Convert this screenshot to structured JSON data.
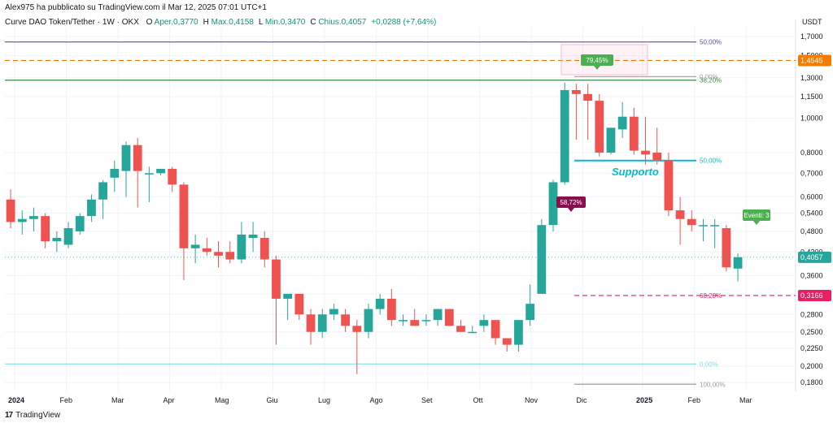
{
  "header": {
    "published": "Alex975 ha pubblicato su TradingView.com il Mar 12, 2025 07:01 UTC+1",
    "symbol": "Curve DAO Token/Tether · 1W · OKX",
    "ohlc": [
      {
        "label": "O",
        "value": "Aper.0,3770"
      },
      {
        "label": "H",
        "value": "Max.0,4158"
      },
      {
        "label": "L",
        "value": "Min.0,3470"
      },
      {
        "label": "C",
        "value": "Chius.0,4057"
      },
      {
        "label": "",
        "value": "+0,0288 (+7,64%)"
      }
    ]
  },
  "footer": {
    "brand": "TradingView",
    "logo": "17"
  },
  "colors": {
    "up": "#26a69a",
    "down": "#ef5350",
    "grid": "#f0f3fa",
    "fib_top": "#5b4dbc",
    "orange": "#f57c00",
    "green_line": "#388e3c",
    "teal": "#00bcd4",
    "magenta": "#e91e63",
    "price": "#26a69a"
  },
  "chart_data": {
    "type": "candlestick",
    "scale": "log",
    "y_unit": "USDT",
    "ylim": [
      0.17,
      1.8
    ],
    "x_ticks": [
      "2024",
      "Feb",
      "Mar",
      "Apr",
      "Mag",
      "Giu",
      "Lug",
      "Ago",
      "Set",
      "Ott",
      "Nov",
      "Dic",
      "2025",
      "Feb",
      "Mar"
    ],
    "y_ticks": [
      "1,7000",
      "1,5000",
      "1,3000",
      "1,1500",
      "1,0000",
      "0,8000",
      "0,7000",
      "0,6000",
      "0,5400",
      "0,4800",
      "0,4200",
      "0,3600",
      "0,3200",
      "0,2800",
      "0,2500",
      "0,2250",
      "0,2000",
      "0,1800"
    ],
    "candles": [
      {
        "o": 0.59,
        "h": 0.63,
        "l": 0.49,
        "c": 0.51
      },
      {
        "o": 0.51,
        "h": 0.55,
        "l": 0.47,
        "c": 0.52
      },
      {
        "o": 0.52,
        "h": 0.56,
        "l": 0.48,
        "c": 0.53
      },
      {
        "o": 0.53,
        "h": 0.54,
        "l": 0.43,
        "c": 0.45
      },
      {
        "o": 0.45,
        "h": 0.48,
        "l": 0.42,
        "c": 0.46
      },
      {
        "o": 0.44,
        "h": 0.51,
        "l": 0.43,
        "c": 0.49
      },
      {
        "o": 0.48,
        "h": 0.54,
        "l": 0.47,
        "c": 0.53
      },
      {
        "o": 0.53,
        "h": 0.61,
        "l": 0.51,
        "c": 0.59
      },
      {
        "o": 0.59,
        "h": 0.67,
        "l": 0.52,
        "c": 0.66
      },
      {
        "o": 0.68,
        "h": 0.76,
        "l": 0.62,
        "c": 0.72
      },
      {
        "o": 0.71,
        "h": 0.86,
        "l": 0.6,
        "c": 0.84
      },
      {
        "o": 0.84,
        "h": 0.88,
        "l": 0.56,
        "c": 0.71
      },
      {
        "o": 0.7,
        "h": 0.73,
        "l": 0.58,
        "c": 0.7
      },
      {
        "o": 0.7,
        "h": 0.72,
        "l": 0.69,
        "c": 0.72
      },
      {
        "o": 0.72,
        "h": 0.73,
        "l": 0.62,
        "c": 0.65
      },
      {
        "o": 0.65,
        "h": 0.66,
        "l": 0.35,
        "c": 0.43
      },
      {
        "o": 0.43,
        "h": 0.47,
        "l": 0.39,
        "c": 0.44
      },
      {
        "o": 0.43,
        "h": 0.46,
        "l": 0.41,
        "c": 0.42
      },
      {
        "o": 0.42,
        "h": 0.45,
        "l": 0.38,
        "c": 0.41
      },
      {
        "o": 0.42,
        "h": 0.45,
        "l": 0.39,
        "c": 0.4
      },
      {
        "o": 0.4,
        "h": 0.51,
        "l": 0.39,
        "c": 0.47
      },
      {
        "o": 0.46,
        "h": 0.51,
        "l": 0.42,
        "c": 0.47
      },
      {
        "o": 0.46,
        "h": 0.48,
        "l": 0.38,
        "c": 0.4
      },
      {
        "o": 0.4,
        "h": 0.41,
        "l": 0.23,
        "c": 0.31
      },
      {
        "o": 0.31,
        "h": 0.32,
        "l": 0.27,
        "c": 0.32
      },
      {
        "o": 0.32,
        "h": 0.32,
        "l": 0.27,
        "c": 0.28
      },
      {
        "o": 0.28,
        "h": 0.29,
        "l": 0.23,
        "c": 0.25
      },
      {
        "o": 0.25,
        "h": 0.29,
        "l": 0.24,
        "c": 0.28
      },
      {
        "o": 0.28,
        "h": 0.3,
        "l": 0.27,
        "c": 0.29
      },
      {
        "o": 0.28,
        "h": 0.29,
        "l": 0.25,
        "c": 0.26
      },
      {
        "o": 0.26,
        "h": 0.27,
        "l": 0.19,
        "c": 0.25
      },
      {
        "o": 0.25,
        "h": 0.3,
        "l": 0.24,
        "c": 0.29
      },
      {
        "o": 0.29,
        "h": 0.32,
        "l": 0.28,
        "c": 0.31
      },
      {
        "o": 0.31,
        "h": 0.33,
        "l": 0.26,
        "c": 0.27
      },
      {
        "o": 0.27,
        "h": 0.28,
        "l": 0.26,
        "c": 0.27
      },
      {
        "o": 0.27,
        "h": 0.29,
        "l": 0.26,
        "c": 0.26
      },
      {
        "o": 0.27,
        "h": 0.28,
        "l": 0.26,
        "c": 0.27
      },
      {
        "o": 0.27,
        "h": 0.29,
        "l": 0.26,
        "c": 0.29
      },
      {
        "o": 0.29,
        "h": 0.29,
        "l": 0.27,
        "c": 0.26
      },
      {
        "o": 0.26,
        "h": 0.27,
        "l": 0.25,
        "c": 0.25
      },
      {
        "o": 0.25,
        "h": 0.26,
        "l": 0.25,
        "c": 0.25
      },
      {
        "o": 0.26,
        "h": 0.28,
        "l": 0.25,
        "c": 0.27
      },
      {
        "o": 0.27,
        "h": 0.27,
        "l": 0.23,
        "c": 0.24
      },
      {
        "o": 0.24,
        "h": 0.24,
        "l": 0.22,
        "c": 0.23
      },
      {
        "o": 0.23,
        "h": 0.27,
        "l": 0.22,
        "c": 0.27
      },
      {
        "o": 0.27,
        "h": 0.34,
        "l": 0.26,
        "c": 0.3
      },
      {
        "o": 0.32,
        "h": 0.52,
        "l": 0.32,
        "c": 0.5
      },
      {
        "o": 0.5,
        "h": 0.67,
        "l": 0.48,
        "c": 0.66
      },
      {
        "o": 0.66,
        "h": 1.26,
        "l": 0.65,
        "c": 1.2
      },
      {
        "o": 1.2,
        "h": 1.25,
        "l": 0.87,
        "c": 1.17
      },
      {
        "o": 1.17,
        "h": 1.25,
        "l": 0.87,
        "c": 1.12
      },
      {
        "o": 1.12,
        "h": 1.17,
        "l": 0.78,
        "c": 0.8
      },
      {
        "o": 0.8,
        "h": 0.94,
        "l": 0.79,
        "c": 0.94
      },
      {
        "o": 0.93,
        "h": 1.11,
        "l": 0.88,
        "c": 1.01
      },
      {
        "o": 1.01,
        "h": 1.07,
        "l": 0.79,
        "c": 0.81
      },
      {
        "o": 0.81,
        "h": 1.01,
        "l": 0.74,
        "c": 0.79
      },
      {
        "o": 0.8,
        "h": 0.94,
        "l": 0.74,
        "c": 0.76
      },
      {
        "o": 0.76,
        "h": 0.8,
        "l": 0.53,
        "c": 0.55
      },
      {
        "o": 0.55,
        "h": 0.6,
        "l": 0.44,
        "c": 0.52
      },
      {
        "o": 0.52,
        "h": 0.55,
        "l": 0.48,
        "c": 0.5
      },
      {
        "o": 0.5,
        "h": 0.52,
        "l": 0.45,
        "c": 0.5
      },
      {
        "o": 0.5,
        "h": 0.52,
        "l": 0.43,
        "c": 0.5
      },
      {
        "o": 0.49,
        "h": 0.5,
        "l": 0.37,
        "c": 0.38
      },
      {
        "o": 0.377,
        "h": 0.416,
        "l": 0.347,
        "c": 0.406
      }
    ],
    "levels": [
      {
        "name": "fib_50_top",
        "label": "50,00%",
        "value": 1.64,
        "color": "#5b4dbc",
        "dash": false
      },
      {
        "name": "fib_orange",
        "label": "",
        "value": 1.4545,
        "color": "#f57c00",
        "dash": true,
        "price_label": "1,4545"
      },
      {
        "name": "fib_38",
        "label": "38,20%",
        "value": 1.28,
        "color": "#388e3c",
        "dash": false
      },
      {
        "name": "fib_0",
        "label": "0,00%",
        "value": 1.31,
        "color": "#9e9e9e",
        "dash": false
      },
      {
        "name": "supporto",
        "label": "50,00%",
        "value": 0.76,
        "color": "#00bcd4",
        "dash": false
      },
      {
        "name": "fib_618",
        "label": "68,20%",
        "value": 0.3166,
        "color": "#e91e63",
        "dash": true,
        "price_label": "0,3166"
      },
      {
        "name": "fib_0_low",
        "label": "0,00%",
        "value": 0.203,
        "color": "#80deea",
        "dash": false
      },
      {
        "name": "fib_100",
        "label": "100,00%",
        "value": 0.178,
        "color": "#9e9e9e",
        "dash": false
      }
    ],
    "current_price": "0,4057",
    "annotations": [
      {
        "text": "79,45%",
        "color": "#4caf50"
      },
      {
        "text": "58,72%",
        "color": "#880e4f"
      },
      {
        "text": "Eventi: 3",
        "color": "#4caf50"
      },
      {
        "text": "Supporto",
        "color": "#00bcd4"
      }
    ]
  }
}
